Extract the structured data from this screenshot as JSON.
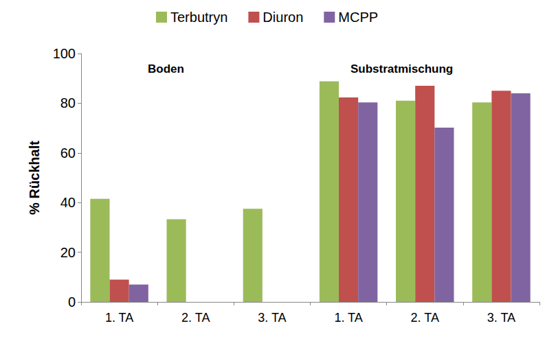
{
  "chart_data": {
    "type": "bar",
    "y_label": "% Rückhalt",
    "categories": [
      "1. TA",
      "2. TA",
      "3. TA",
      "1. TA",
      "2. TA",
      "3. TA"
    ],
    "series": [
      {
        "name": "Terbutryn",
        "color": "#9bbb59",
        "values": [
          41.5,
          33.3,
          37.5,
          88.8,
          81.0,
          80.3
        ]
      },
      {
        "name": "Diuron",
        "color": "#c0504d",
        "values": [
          9.0,
          0,
          0,
          82.3,
          87.0,
          85.0
        ]
      },
      {
        "name": "MCPP",
        "color": "#8064a2",
        "values": [
          7.0,
          0,
          0,
          80.3,
          70.2,
          84.0
        ]
      }
    ],
    "annotations": [
      "Boden",
      "Substratmischung"
    ],
    "ylim": [
      0,
      100
    ],
    "yticks": [
      0,
      20,
      40,
      60,
      80,
      100
    ],
    "grid": false,
    "legend": "top"
  }
}
